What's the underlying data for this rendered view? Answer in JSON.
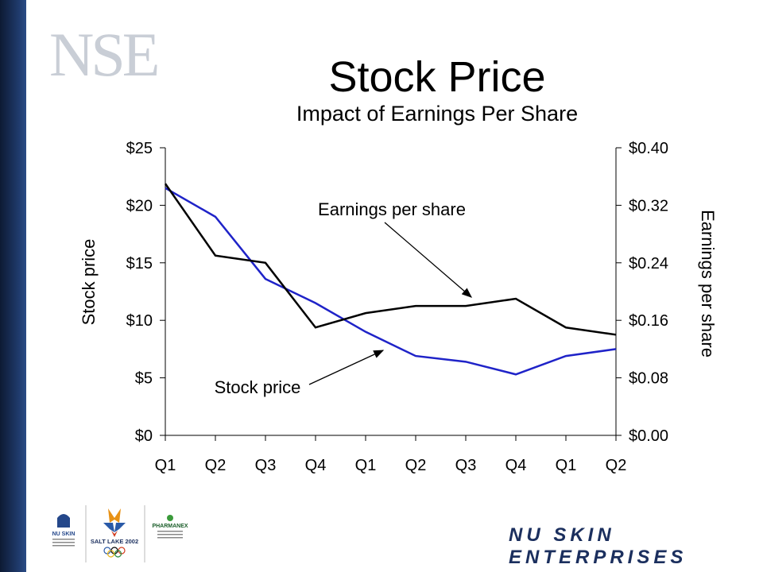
{
  "header": {
    "logo_text": "NSE",
    "title": "Stock Price",
    "subtitle": "Impact of Earnings Per Share"
  },
  "chart_data": {
    "type": "line",
    "categories": [
      "Q1",
      "Q2",
      "Q3",
      "Q4",
      "Q1",
      "Q2",
      "Q3",
      "Q4",
      "Q1",
      "Q2"
    ],
    "y_left": {
      "label": "Stock price",
      "ylim": [
        0,
        25
      ],
      "ticks": [
        0,
        5,
        10,
        15,
        20,
        25
      ],
      "tick_labels": [
        "$0",
        "$5",
        "$10",
        "$15",
        "$20",
        "$25"
      ]
    },
    "y_right": {
      "label": "Earnings per share",
      "ylim": [
        0,
        0.4
      ],
      "ticks": [
        0,
        0.08,
        0.16,
        0.24,
        0.32,
        0.4
      ],
      "tick_labels": [
        "$0.00",
        "$0.08",
        "$0.16",
        "$0.24",
        "$0.32",
        "$0.40"
      ]
    },
    "series": [
      {
        "name": "Stock price",
        "axis": "left",
        "color": "#1f23c8",
        "values": [
          21.5,
          19.0,
          13.6,
          11.5,
          9.0,
          6.9,
          6.4,
          5.3,
          6.9,
          7.5
        ]
      },
      {
        "name": "Earnings per share",
        "axis": "right",
        "color": "#000000",
        "values": [
          0.35,
          0.25,
          0.24,
          0.15,
          0.17,
          0.18,
          0.18,
          0.19,
          0.15,
          0.14
        ]
      }
    ],
    "annotations": [
      {
        "text": "Earnings per share",
        "points_to": "Earnings per share"
      },
      {
        "text": "Stock price",
        "points_to": "Stock price"
      }
    ],
    "grid": false
  },
  "footer": {
    "wordmark": "NU SKIN ENTERPRISES",
    "logos": [
      "nu-skin-olympic-sponsor",
      "salt-lake-2002-olympics",
      "pharmanex-olympic-sponsor"
    ],
    "logo_texts": {
      "nuskin": "NU SKIN",
      "saltlake": "SALT LAKE 2002",
      "pharmanex": "PHARMANEX"
    }
  }
}
